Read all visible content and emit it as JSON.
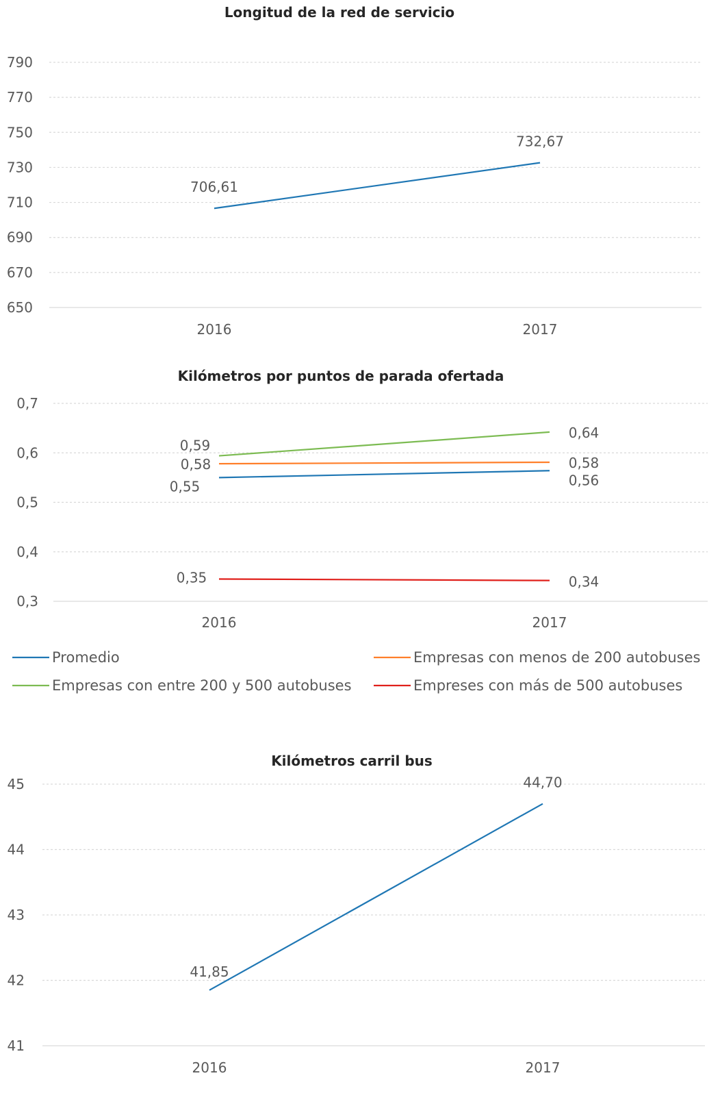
{
  "chart_data": [
    {
      "type": "line",
      "title": "Longitud de la red de servicio",
      "categories": [
        "2016",
        "2017"
      ],
      "ylim": [
        650,
        790
      ],
      "yticks": [
        "650",
        "670",
        "690",
        "710",
        "730",
        "750",
        "770",
        "790"
      ],
      "yticks_values": [
        650,
        670,
        690,
        710,
        730,
        750,
        770,
        790
      ],
      "grid": true,
      "series": [
        {
          "color": "#1f77b4",
          "values": [
            706.61,
            732.67
          ],
          "labels": [
            "706,61",
            "732,67"
          ]
        }
      ]
    },
    {
      "type": "line",
      "title": "Kilómetros por puntos de parada ofertada",
      "categories": [
        "2016",
        "2017"
      ],
      "ylim": [
        0.3,
        0.7
      ],
      "yticks": [
        "0,3",
        "0,4",
        "0,5",
        "0,6",
        "0,7"
      ],
      "yticks_values": [
        0.3,
        0.4,
        0.5,
        0.6,
        0.7
      ],
      "grid": true,
      "legend": "bottom",
      "series": [
        {
          "name": "Promedio",
          "color": "#1f77b4",
          "values": [
            0.55,
            0.564
          ],
          "labels": [
            "0,55",
            "0,56"
          ]
        },
        {
          "name": "Empresas con menos de 200 autobuses",
          "color": "#ff7f2a",
          "values": [
            0.578,
            0.581
          ],
          "labels": [
            "0,58",
            "0,58"
          ]
        },
        {
          "name": "Empresas con entre 200 y 500 autobuses",
          "color": "#7cbb52",
          "values": [
            0.594,
            0.642
          ],
          "labels": [
            "0,59",
            "0,64"
          ]
        },
        {
          "name": "Empreses con más de 500 autobuses",
          "color": "#e0201b",
          "values": [
            0.345,
            0.342
          ],
          "labels": [
            "0,35",
            "0,34"
          ]
        }
      ]
    },
    {
      "type": "line",
      "title": "Kilómetros carril bus",
      "categories": [
        "2016",
        "2017"
      ],
      "ylim": [
        41,
        45
      ],
      "yticks": [
        "41",
        "42",
        "43",
        "44",
        "45"
      ],
      "yticks_values": [
        41,
        42,
        43,
        44,
        45
      ],
      "grid": true,
      "series": [
        {
          "color": "#1f77b4",
          "values": [
            41.85,
            44.7
          ],
          "labels": [
            "41,85",
            "44,70"
          ]
        }
      ]
    }
  ]
}
